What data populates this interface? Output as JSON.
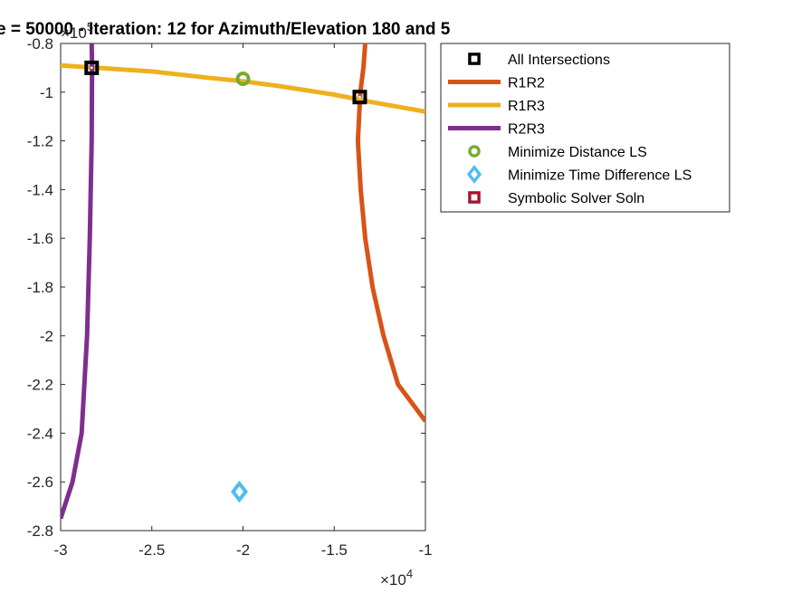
{
  "chart_data": {
    "type": "line",
    "title": "e = 50000 - Iteration: 12 for Azimuth/Elevation 180 and 5",
    "xlabel": "",
    "ylabel": "",
    "x_exponent": {
      "base": "×10",
      "power": "4"
    },
    "y_exponent": {
      "base": "×10",
      "power": "5"
    },
    "xlim": [
      -3,
      -1
    ],
    "ylim": [
      -2.8,
      -0.8
    ],
    "x_ticks": [
      -3,
      -2.5,
      -2,
      -1.5,
      -1
    ],
    "x_tick_labels": [
      "-3",
      "-2.5",
      "-2",
      "-1.5",
      "-1"
    ],
    "y_ticks": [
      -2.8,
      -2.6,
      -2.4,
      -2.2,
      -2,
      -1.8,
      -1.6,
      -1.4,
      -1.2,
      -1,
      -0.8
    ],
    "y_tick_labels": [
      "-2.8",
      "-2.6",
      "-2.4",
      "-2.2",
      "-2",
      "-1.8",
      "-1.6",
      "-1.4",
      "-1.2",
      "-1",
      "-0.8"
    ],
    "grid": false,
    "legend_position": "outside-top-right",
    "series": [
      {
        "name": "R1R2",
        "kind": "line",
        "color": "#D95319",
        "points": [
          [
            -1.33,
            -0.8
          ],
          [
            -1.34,
            -0.9
          ],
          [
            -1.357,
            -1.0
          ],
          [
            -1.37,
            -1.2
          ],
          [
            -1.355,
            -1.4
          ],
          [
            -1.33,
            -1.6
          ],
          [
            -1.29,
            -1.8
          ],
          [
            -1.23,
            -2.0
          ],
          [
            -1.15,
            -2.2
          ],
          [
            -1.0,
            -2.35
          ]
        ]
      },
      {
        "name": "R1R3",
        "kind": "line",
        "color": "#EDB120",
        "points": [
          [
            -3.0,
            -0.89
          ],
          [
            -2.8,
            -0.9
          ],
          [
            -2.5,
            -0.915
          ],
          [
            -2.2,
            -0.94
          ],
          [
            -2.0,
            -0.955
          ],
          [
            -1.8,
            -0.975
          ],
          [
            -1.5,
            -1.01
          ],
          [
            -1.3,
            -1.04
          ],
          [
            -1.0,
            -1.08
          ]
        ]
      },
      {
        "name": "R2R3",
        "kind": "line",
        "color": "#7E2F8E",
        "points": [
          [
            -2.83,
            -0.8
          ],
          [
            -2.828,
            -0.9
          ],
          [
            -2.83,
            -1.2
          ],
          [
            -2.84,
            -1.6
          ],
          [
            -2.855,
            -2.0
          ],
          [
            -2.885,
            -2.4
          ],
          [
            -2.935,
            -2.6
          ],
          [
            -3.0,
            -2.75
          ]
        ]
      },
      {
        "name": "All Intersections",
        "kind": "marker",
        "marker": "square",
        "color": "#000000",
        "points": [
          [
            -2.83,
            -0.9
          ],
          [
            -1.36,
            -1.02
          ]
        ]
      },
      {
        "name": "Minimize Distance LS",
        "kind": "marker",
        "marker": "circle",
        "color": "#77AC30",
        "points": [
          [
            -2.0,
            -0.945
          ]
        ]
      },
      {
        "name": "Minimize Time Difference LS",
        "kind": "marker",
        "marker": "diamond",
        "color": "#4DBEEE",
        "points": [
          [
            -2.02,
            -2.64
          ]
        ]
      },
      {
        "name": "Symbolic Solver Soln",
        "kind": "marker",
        "marker": "square",
        "color": "#A2142F",
        "points": []
      }
    ]
  }
}
